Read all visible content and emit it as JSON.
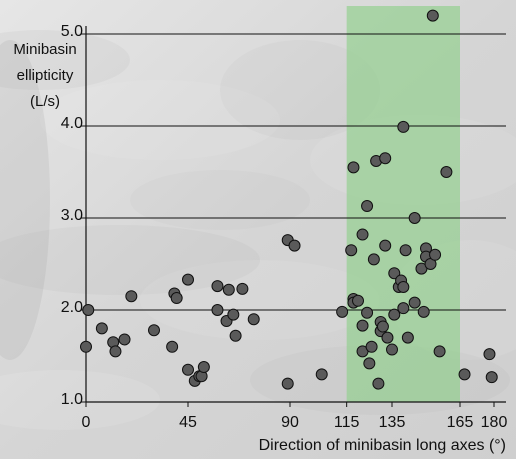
{
  "chart_data": {
    "type": "scatter",
    "title": "",
    "xlabel": "Direction of minibasin long axes (°)",
    "ylabel_lines": [
      "Minibasin",
      "ellipticity",
      "(L/s)"
    ],
    "xlim": [
      0,
      180
    ],
    "ylim": [
      1.0,
      5.0
    ],
    "x_ticks": [
      0,
      45,
      90,
      115,
      135,
      165,
      180
    ],
    "x_tick_labels": [
      "0",
      "45",
      "90",
      "115",
      "135",
      "165",
      "180"
    ],
    "y_ticks": [
      1.0,
      2.0,
      3.0,
      4.0,
      5.0
    ],
    "y_tick_labels": [
      "1.0",
      "2.0",
      "3.0",
      "4.0",
      "5.0"
    ],
    "grid": "horizontal",
    "highlight_band": {
      "x_range": [
        115,
        165
      ],
      "color": "#8fd08a"
    },
    "colors": {
      "point_fill": "#5a5a5a",
      "point_stroke": "#111111",
      "gridline": "#111111",
      "background": "#d9d9d9"
    },
    "series": [
      {
        "points": [
          [
            1,
            2.0
          ],
          [
            0,
            1.6
          ],
          [
            7,
            1.8
          ],
          [
            12,
            1.65
          ],
          [
            13,
            1.55
          ],
          [
            17,
            1.68
          ],
          [
            20,
            2.15
          ],
          [
            30,
            1.78
          ],
          [
            38,
            1.6
          ],
          [
            39,
            2.18
          ],
          [
            40,
            2.13
          ],
          [
            45,
            2.33
          ],
          [
            45,
            1.35
          ],
          [
            48,
            1.23
          ],
          [
            50,
            1.28
          ],
          [
            51,
            1.28
          ],
          [
            52,
            1.38
          ],
          [
            58,
            2.26
          ],
          [
            58,
            2.0
          ],
          [
            62,
            1.88
          ],
          [
            63,
            2.22
          ],
          [
            65,
            1.95
          ],
          [
            66,
            1.72
          ],
          [
            69,
            2.23
          ],
          [
            74,
            1.9
          ],
          [
            89,
            2.76
          ],
          [
            89,
            1.2
          ],
          [
            92,
            2.7
          ],
          [
            104,
            1.3
          ],
          [
            113,
            1.98
          ],
          [
            117,
            2.65
          ],
          [
            118,
            3.55
          ],
          [
            118,
            2.12
          ],
          [
            118,
            2.08
          ],
          [
            120,
            2.1
          ],
          [
            122,
            2.82
          ],
          [
            122,
            1.83
          ],
          [
            122,
            1.55
          ],
          [
            124,
            3.13
          ],
          [
            124,
            1.97
          ],
          [
            125,
            1.42
          ],
          [
            126,
            1.6
          ],
          [
            127,
            2.55
          ],
          [
            128,
            3.62
          ],
          [
            129,
            1.2
          ],
          [
            130,
            1.77
          ],
          [
            130,
            1.87
          ],
          [
            131,
            1.82
          ],
          [
            132,
            3.65
          ],
          [
            132,
            2.7
          ],
          [
            133,
            1.7
          ],
          [
            135,
            1.57
          ],
          [
            136,
            2.4
          ],
          [
            136,
            1.95
          ],
          [
            138,
            2.25
          ],
          [
            139,
            2.32
          ],
          [
            140,
            3.99
          ],
          [
            140,
            2.25
          ],
          [
            140,
            2.02
          ],
          [
            141,
            2.65
          ],
          [
            142,
            1.7
          ],
          [
            145,
            3.0
          ],
          [
            145,
            2.08
          ],
          [
            148,
            2.45
          ],
          [
            149,
            1.98
          ],
          [
            150,
            2.67
          ],
          [
            150,
            2.58
          ],
          [
            152,
            2.5
          ],
          [
            153,
            5.2
          ],
          [
            154,
            2.6
          ],
          [
            156,
            1.55
          ],
          [
            159,
            3.5
          ],
          [
            167,
            1.3
          ],
          [
            178,
            1.52
          ],
          [
            179,
            1.27
          ]
        ]
      }
    ]
  }
}
